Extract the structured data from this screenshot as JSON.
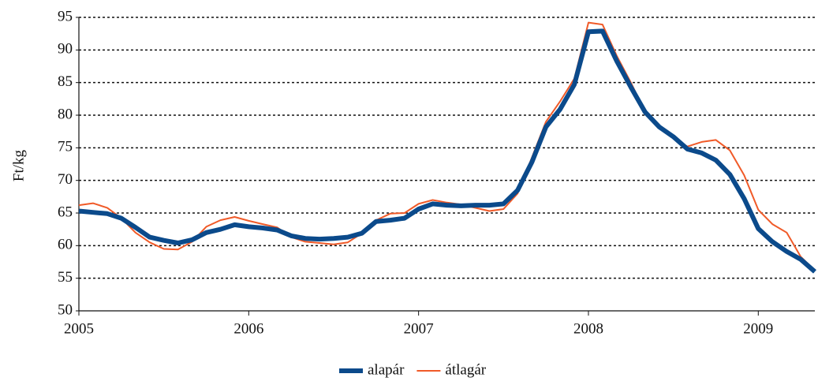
{
  "chart_data": {
    "type": "line",
    "y_label": "Ft/kg",
    "x": [
      2005,
      2005.083,
      2005.167,
      2005.25,
      2005.333,
      2005.417,
      2005.5,
      2005.583,
      2005.667,
      2005.75,
      2005.833,
      2005.917,
      2006,
      2006.083,
      2006.167,
      2006.25,
      2006.333,
      2006.417,
      2006.5,
      2006.583,
      2006.667,
      2006.75,
      2006.833,
      2006.917,
      2007,
      2007.083,
      2007.167,
      2007.25,
      2007.333,
      2007.417,
      2007.5,
      2007.583,
      2007.667,
      2007.75,
      2007.833,
      2007.917,
      2008,
      2008.083,
      2008.167,
      2008.25,
      2008.333,
      2008.417,
      2008.5,
      2008.583,
      2008.667,
      2008.75,
      2008.833,
      2008.917,
      2009,
      2009.083,
      2009.167,
      2009.25,
      2009.333
    ],
    "series": [
      {
        "name": "alapár",
        "color": "#0b4a8b",
        "values": [
          65.3,
          65.1,
          64.9,
          64.2,
          62.8,
          61.3,
          60.8,
          60.4,
          60.9,
          62.0,
          62.5,
          63.2,
          62.9,
          62.7,
          62.4,
          61.5,
          61.1,
          61.0,
          61.1,
          61.3,
          61.9,
          63.7,
          63.9,
          64.2,
          65.6,
          66.4,
          66.2,
          66.1,
          66.2,
          66.2,
          66.4,
          68.5,
          72.8,
          78.2,
          80.9,
          84.7,
          92.8,
          92.9,
          88.3,
          84.3,
          80.5,
          78.2,
          76.7,
          74.8,
          74.2,
          73.1,
          70.9,
          67.2,
          62.6,
          60.6,
          59.1,
          57.9,
          56.0
        ]
      },
      {
        "name": "átlagár",
        "color": "#f05a28",
        "values": [
          66.2,
          66.5,
          65.8,
          64.2,
          62.0,
          60.5,
          59.5,
          59.4,
          60.6,
          62.9,
          63.9,
          64.4,
          63.8,
          63.3,
          62.8,
          61.3,
          60.6,
          60.4,
          60.2,
          60.5,
          61.9,
          63.9,
          64.9,
          65.0,
          66.4,
          67.0,
          66.6,
          66.3,
          65.8,
          65.3,
          65.6,
          68.0,
          73.5,
          79.0,
          82.1,
          85.6,
          94.2,
          93.9,
          89.1,
          85.0,
          80.5,
          78.4,
          76.5,
          75.2,
          75.9,
          76.2,
          74.6,
          70.8,
          65.5,
          63.3,
          62.0,
          58.3,
          56.2
        ]
      }
    ],
    "xlim": [
      2005,
      2009.333
    ],
    "xticks": [
      2005,
      2006,
      2007,
      2008,
      2009
    ],
    "ylim": [
      50,
      95
    ],
    "yticks": [
      50,
      55,
      60,
      65,
      70,
      75,
      80,
      85,
      90,
      95
    ],
    "grid": true,
    "legend": "bottom"
  }
}
